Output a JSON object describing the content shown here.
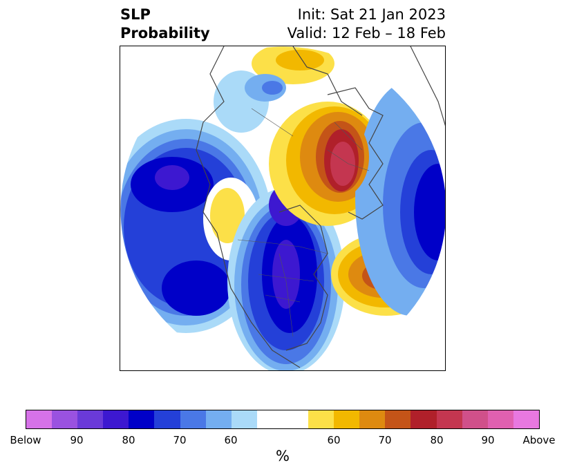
{
  "title": {
    "left_line1": "SLP",
    "left_line2": "Probability",
    "right_line1": "Init: Sat 21 Jan 2023",
    "right_line2": "Valid: 12 Feb – 18 Feb"
  },
  "colorbar": {
    "colors": [
      "#d672e8",
      "#9a52e0",
      "#6a3ad8",
      "#3d18d0",
      "#0000c8",
      "#2440d8",
      "#4a78e6",
      "#74aef0",
      "#aadaf8",
      "#ffffff",
      "#ffffff",
      "#fce048",
      "#f2b800",
      "#de8a10",
      "#c45418",
      "#b0202a",
      "#c43650",
      "#d0508a",
      "#e060b0",
      "#e878e0"
    ],
    "ticks": [
      "Below",
      "90",
      "80",
      "70",
      "60",
      "60",
      "70",
      "80",
      "90",
      "Above"
    ],
    "label": "%"
  },
  "map": {
    "projection": "north-polar-stereographic",
    "features": [
      "coastlines",
      "country-borders",
      "state-borders"
    ]
  }
}
